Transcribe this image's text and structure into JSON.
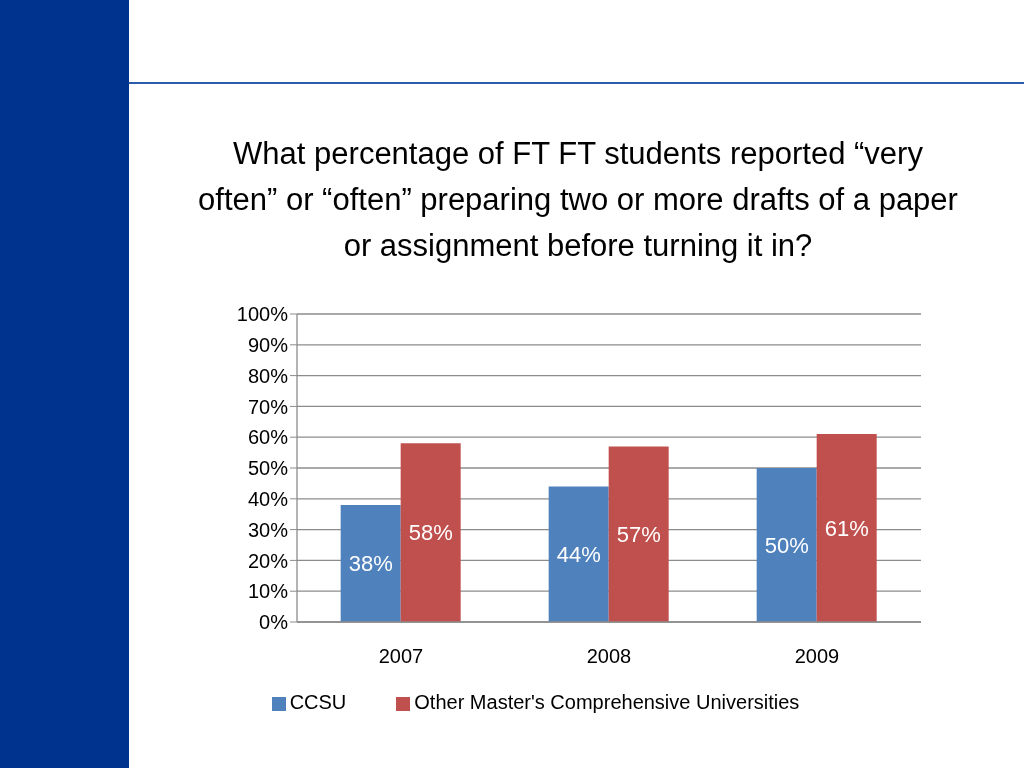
{
  "chart_data": {
    "type": "bar",
    "title": "What percentage of FT FT students reported “very often” or “often” preparing two or more drafts of a paper or assignment before turning it in?",
    "categories": [
      "2007",
      "2008",
      "2009"
    ],
    "series": [
      {
        "name": "CCSU",
        "color": "#4f81bd",
        "values": [
          38,
          44,
          50
        ],
        "value_labels": [
          "38%",
          "44%",
          "50%"
        ]
      },
      {
        "name": "Other Master's Comprehensive Universities",
        "color": "#c0504d",
        "values": [
          58,
          57,
          61
        ],
        "value_labels": [
          "58%",
          "57%",
          "61%"
        ]
      }
    ],
    "ylim": [
      0,
      100
    ],
    "yticks": [
      {
        "value": 0,
        "label": "0%"
      },
      {
        "value": 10,
        "label": "10%"
      },
      {
        "value": 20,
        "label": "20%"
      },
      {
        "value": 30,
        "label": "30%"
      },
      {
        "value": 40,
        "label": "40%"
      },
      {
        "value": 50,
        "label": "50%"
      },
      {
        "value": 60,
        "label": "60%"
      },
      {
        "value": 70,
        "label": "70%"
      },
      {
        "value": 80,
        "label": "80%"
      },
      {
        "value": 90,
        "label": "90%"
      },
      {
        "value": 100,
        "label": "100%"
      }
    ],
    "grid": "y",
    "legend": "bottom"
  }
}
